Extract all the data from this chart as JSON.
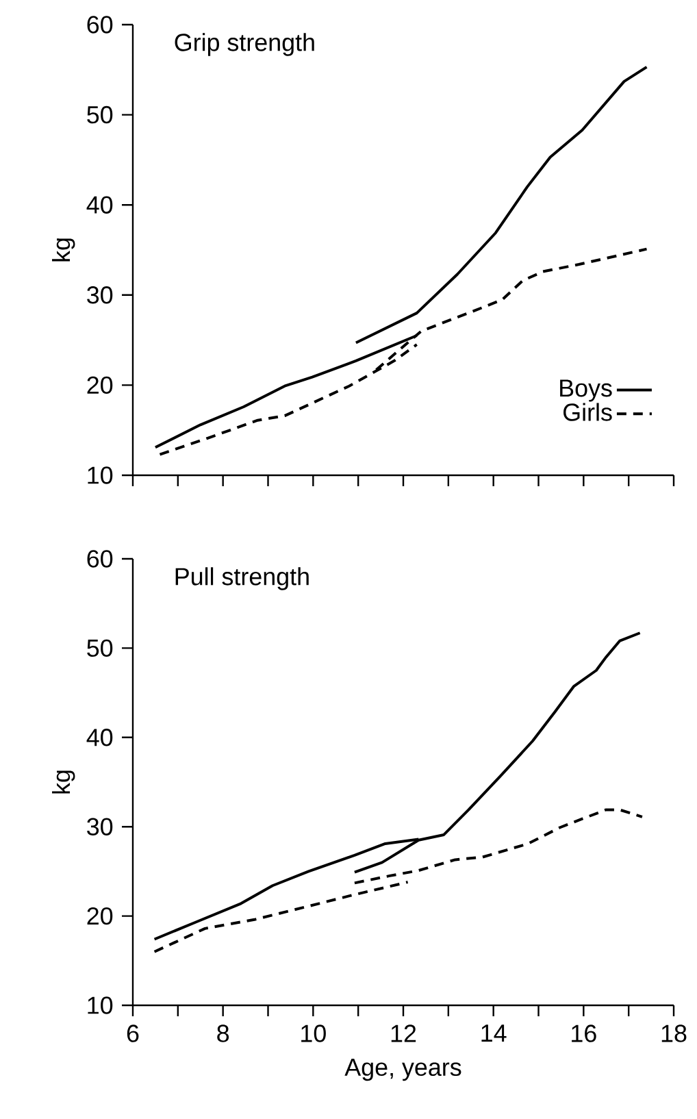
{
  "chart_data": [
    {
      "type": "line",
      "title": "Grip strength",
      "ylabel": "kg",
      "xlim": [
        6,
        18
      ],
      "ylim": [
        10,
        60
      ],
      "xticks": [
        6,
        7,
        8,
        9,
        10,
        11,
        12,
        13,
        14,
        15,
        16,
        17,
        18
      ],
      "yticks": [
        10,
        20,
        30,
        40,
        50,
        60
      ],
      "tick_labels": "y",
      "legend": "bottom right",
      "grid": false,
      "series": [
        {
          "name": "Boys",
          "color": "#000000",
          "line_style": "solid",
          "x": [
            6.5,
            7.5,
            8.46,
            9.37,
            9.98,
            10.95,
            12.3
          ],
          "values": [
            13.1,
            15.6,
            17.6,
            19.9,
            20.9,
            22.7,
            25.5
          ]
        },
        {
          "name": "Girls",
          "color": "#000000",
          "line_style": "dashed",
          "x": [
            6.6,
            7.65,
            8.77,
            9.37,
            10.8,
            11.8,
            12.3
          ],
          "values": [
            12.3,
            14.1,
            16.1,
            16.6,
            19.9,
            22.7,
            24.5
          ]
        },
        {
          "color": "#000000",
          "line_style": "solid",
          "x": [
            10.95,
            12.3,
            13.2,
            14.05,
            14.75,
            15.26,
            15.97,
            16.9,
            17.4
          ],
          "values": [
            24.7,
            28.0,
            32.3,
            36.9,
            42.0,
            45.3,
            48.3,
            53.7,
            55.3
          ]
        },
        {
          "color": "#000000",
          "line_style": "dashed",
          "x": [
            11.4,
            12.4,
            13.6,
            14.2,
            14.65,
            15.1,
            15.9,
            17.4
          ],
          "values": [
            21.7,
            26.0,
            28.3,
            29.5,
            31.6,
            32.6,
            33.4,
            35.1
          ]
        }
      ]
    },
    {
      "type": "line",
      "title": "Pull strength",
      "ylabel": "kg",
      "xlabel": "Age, years",
      "xlim": [
        6,
        18
      ],
      "ylim": [
        10,
        60
      ],
      "xticks": [
        6,
        {
          "value": 7,
          "label": null
        },
        8,
        {
          "value": 9,
          "label": null
        },
        10,
        {
          "value": 11,
          "label": null
        },
        12,
        {
          "value": 13,
          "label": null
        },
        14,
        {
          "value": 15,
          "label": null
        },
        16,
        {
          "value": 17,
          "label": null
        },
        18
      ],
      "yticks": [
        10,
        20,
        30,
        40,
        50,
        60
      ],
      "grid": false,
      "series": [
        {
          "color": "#000000",
          "line_style": "solid",
          "x": [
            6.48,
            7.39,
            8.4,
            9.1,
            9.9,
            10.92,
            11.6,
            12.34
          ],
          "values": [
            17.4,
            19.3,
            21.4,
            23.4,
            25.0,
            26.8,
            28.1,
            28.6
          ]
        },
        {
          "color": "#000000",
          "line_style": "dashed",
          "x": [
            6.48,
            7.6,
            8.7,
            9.9,
            10.92,
            11.6,
            12.1
          ],
          "values": [
            16.0,
            18.6,
            19.6,
            21.1,
            22.4,
            23.2,
            23.8
          ]
        },
        {
          "color": "#000000",
          "line_style": "solid",
          "x": [
            10.92,
            11.53,
            12.34,
            12.9,
            13.45,
            14.16,
            14.87,
            15.37,
            15.78,
            16.28,
            16.5,
            16.8,
            17.25
          ],
          "values": [
            24.9,
            26.0,
            28.5,
            29.1,
            31.9,
            35.7,
            39.6,
            42.9,
            45.7,
            47.5,
            49.0,
            50.8,
            51.7
          ]
        },
        {
          "color": "#000000",
          "line_style": "dashed",
          "x": [
            10.92,
            11.7,
            12.34,
            13.15,
            13.76,
            14.77,
            15.47,
            15.98,
            16.5,
            16.8,
            17.3
          ],
          "values": [
            23.7,
            24.5,
            25.1,
            26.3,
            26.6,
            28.1,
            29.9,
            30.9,
            31.9,
            31.9,
            31.1
          ]
        }
      ]
    }
  ]
}
